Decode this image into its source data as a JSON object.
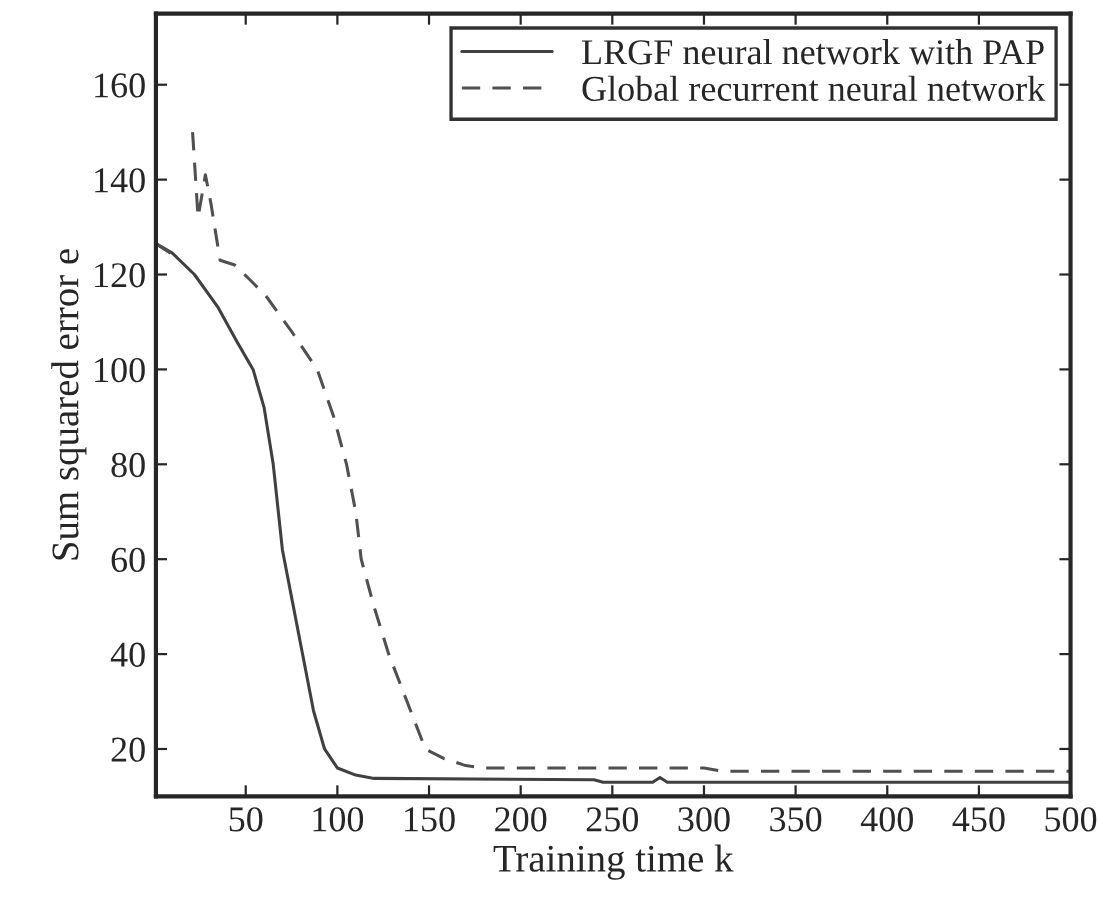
{
  "chart_data": {
    "type": "line",
    "xlabel": "Training time k",
    "ylabel": "Sum squared error e",
    "xlim": [
      1,
      500
    ],
    "ylim": [
      10,
      175
    ],
    "xticks": [
      50,
      100,
      150,
      200,
      250,
      300,
      350,
      400,
      450,
      500
    ],
    "yticks": [
      20,
      40,
      60,
      80,
      100,
      120,
      140,
      160
    ],
    "grid": false,
    "legend": "top right",
    "marker": "none",
    "series": [
      {
        "name": "LRGF neural network with PAP",
        "color": "#404040",
        "line_style": "solid",
        "x": [
          1,
          10,
          22,
          35,
          45,
          54,
          60,
          65,
          70,
          75,
          81,
          87,
          93,
          100,
          110,
          120,
          240,
          245,
          272,
          276,
          280,
          500
        ],
        "values": [
          126.5,
          124.5,
          120,
          113,
          106,
          100,
          92,
          80,
          62,
          52,
          40,
          28,
          20,
          16,
          14.5,
          13.8,
          13.5,
          13,
          13,
          14,
          13,
          13
        ]
      },
      {
        "name": "Global recurrent neural network",
        "color": "#505050",
        "line_style": "dashed",
        "x": [
          1,
          9,
          10,
          20,
          21,
          24,
          28,
          31,
          36,
          44,
          52,
          61,
          75,
          89,
          98,
          105,
          110,
          113,
          120,
          128,
          138,
          148,
          158,
          170,
          180,
          300,
          310,
          500
        ],
        "values": [
          126.5,
          124.5,
          null,
          null,
          150,
          132,
          141,
          135,
          123,
          122,
          119,
          115.5,
          108,
          100,
          90,
          80,
          70,
          60,
          50,
          40,
          30,
          20,
          18,
          16.5,
          16,
          16,
          15.3,
          15.3
        ]
      }
    ]
  }
}
